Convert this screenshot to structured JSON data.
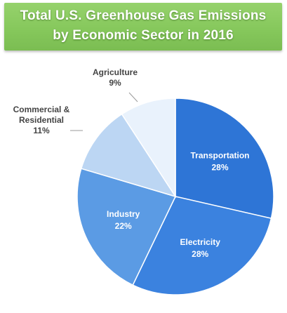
{
  "header": {
    "title_line1": "Total U.S. Greenhouse Gas Emissions",
    "title_line2": "by Economic Sector in 2016"
  },
  "chart_data": {
    "type": "pie",
    "title": "Total U.S. Greenhouse Gas Emissions by Economic Sector in 2016",
    "unit": "%",
    "start": "12 o'clock",
    "direction": "clockwise",
    "slices": [
      {
        "name": "Transportation",
        "value": 28,
        "label": "28%",
        "color": "#2e75d6",
        "label_placement": "inside"
      },
      {
        "name": "Electricity",
        "value": 28,
        "label": "28%",
        "color": "#3b82df",
        "label_placement": "inside"
      },
      {
        "name": "Industry",
        "value": 22,
        "label": "22%",
        "color": "#5b9be4",
        "label_placement": "inside"
      },
      {
        "name": "Commercial & Residential",
        "value": 11,
        "label": "11%",
        "color": "#bcd6f3",
        "label_placement": "outside",
        "name_lines": [
          "Commercial &",
          "Residential"
        ]
      },
      {
        "name": "Agriculture",
        "value": 9,
        "label": "9%",
        "color": "#e9f2fc",
        "label_placement": "outside"
      }
    ]
  }
}
